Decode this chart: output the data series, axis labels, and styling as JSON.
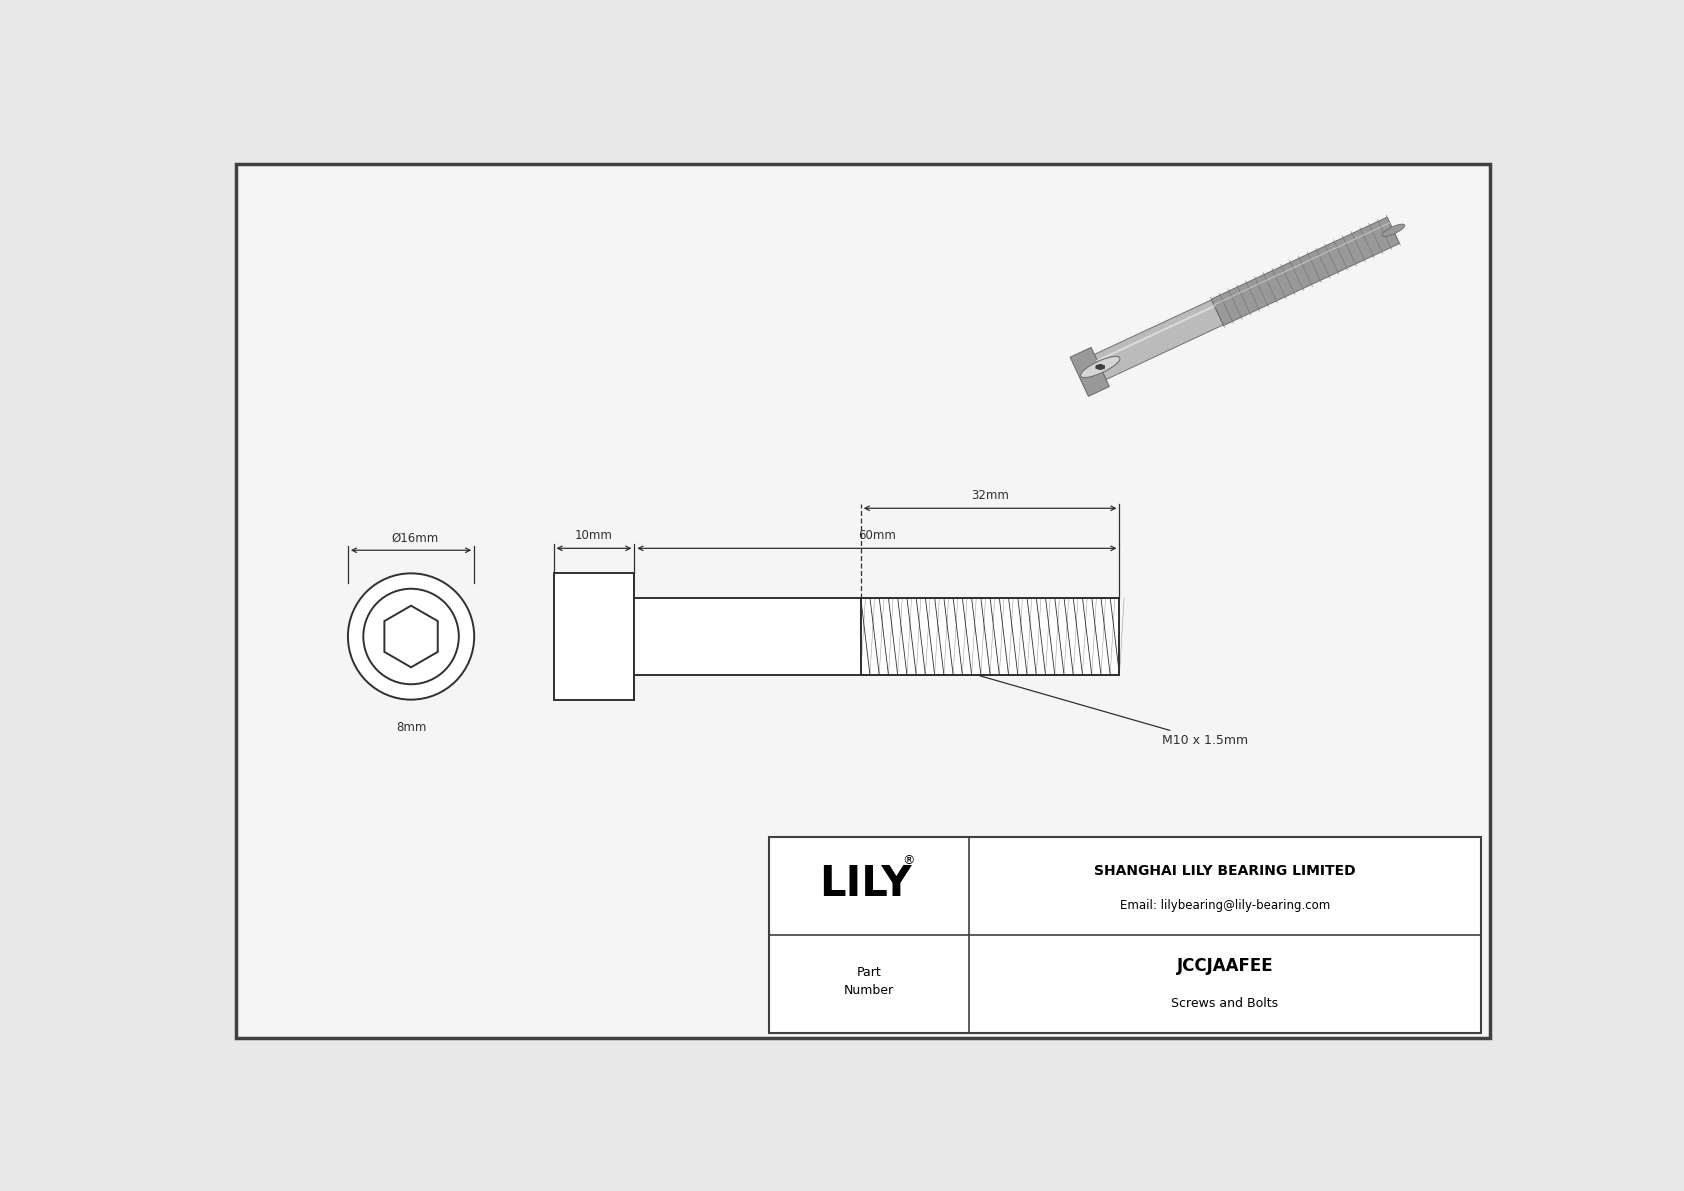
{
  "bg_color": "#e8e8e8",
  "drawing_bg": "#f5f5f5",
  "line_color": "#303030",
  "dim_color": "#303030",
  "border_color": "#404040",
  "title": "JCCJAAFEE",
  "subtitle": "Screws and Bolts",
  "company": "SHANGHAI LILY BEARING LIMITED",
  "email": "Email: lilybearing@lily-bearing.com",
  "logo": "LILY",
  "part_label": "Part\nNumber",
  "head_diameter": "16mm",
  "head_height": "8mm",
  "shank_length": "60mm",
  "head_length": "10mm",
  "thread_length": "32mm",
  "thread_spec": "M10 x 1.5mm",
  "diam_symbol": "Ø16mm"
}
